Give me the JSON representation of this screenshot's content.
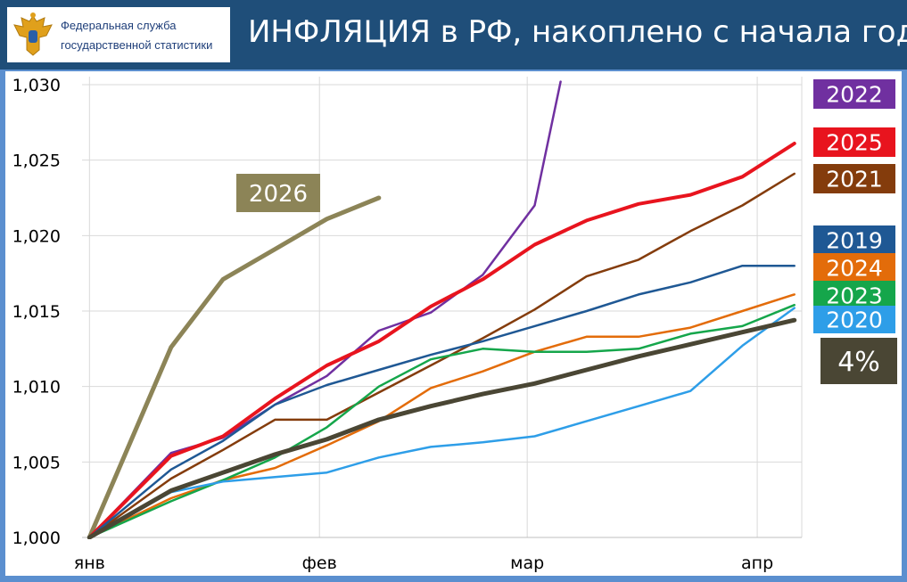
{
  "header": {
    "logo_line1": "Федеральная служба",
    "logo_line2": "государственной статистики",
    "title": "ИНФЛЯЦИЯ в РФ, накоплено с начала года"
  },
  "colors": {
    "header_bg": "#1f4e79",
    "frame_bg": "#5b8fcf",
    "s2026": "#8c8457",
    "s2022": "#7030a0",
    "s2025": "#e8141e",
    "s2021": "#843c0c",
    "s2019": "#1f5894",
    "s2024": "#e36c0a",
    "s2023": "#15a64b",
    "s2020": "#2e9ee8",
    "s4pct": "#4a4634"
  },
  "chart_data": {
    "type": "line",
    "x_ticks": [
      {
        "label": "янв",
        "x": 0
      },
      {
        "label": "фев",
        "x": 31
      },
      {
        "label": "мар",
        "x": 59
      },
      {
        "label": "апр",
        "x": 90
      }
    ],
    "xlim": [
      -1,
      96
    ],
    "ylim": [
      1.0,
      1.03
    ],
    "y_ticks": [
      "1,000",
      "1,005",
      "1,010",
      "1,015",
      "1,020",
      "1,025",
      "1,030"
    ],
    "y_tick_values": [
      1.0,
      1.005,
      1.01,
      1.015,
      1.02,
      1.025,
      1.03
    ],
    "grid": true,
    "series": [
      {
        "name": "2026",
        "color": "#8c8457",
        "width": 5,
        "x": [
          0,
          11,
          18,
          25,
          32,
          39
        ],
        "y": [
          1.0,
          1.0126,
          1.0171,
          1.0191,
          1.0211,
          1.0225
        ]
      },
      {
        "name": "2022",
        "color": "#7030a0",
        "width": 2.5,
        "x": [
          0,
          11,
          18,
          25,
          32,
          39,
          46,
          53,
          60,
          63.5
        ],
        "y": [
          1.0,
          1.0056,
          1.0066,
          1.0088,
          1.0107,
          1.0137,
          1.0149,
          1.0174,
          1.022,
          1.0302
        ]
      },
      {
        "name": "2025",
        "color": "#e8141e",
        "width": 4,
        "x": [
          0,
          11,
          18,
          25,
          32,
          39,
          46,
          53,
          60,
          67,
          74,
          81,
          88,
          95
        ],
        "y": [
          1.0,
          1.0054,
          1.0067,
          1.0092,
          1.0114,
          1.013,
          1.0153,
          1.0171,
          1.0194,
          1.021,
          1.0221,
          1.0227,
          1.0239,
          1.0261
        ]
      },
      {
        "name": "2021",
        "color": "#843c0c",
        "width": 2.5,
        "x": [
          0,
          11,
          18,
          25,
          32,
          39,
          46,
          53,
          60,
          67,
          74,
          81,
          88,
          95
        ],
        "y": [
          1.0,
          1.0039,
          1.0058,
          1.0078,
          1.0078,
          1.0096,
          1.0114,
          1.0132,
          1.0151,
          1.0173,
          1.0184,
          1.0203,
          1.022,
          1.0241
        ]
      },
      {
        "name": "2019",
        "color": "#1f5894",
        "width": 2.5,
        "x": [
          0,
          11,
          18,
          25,
          32,
          39,
          46,
          53,
          60,
          67,
          74,
          81,
          88,
          95
        ],
        "y": [
          1.0,
          1.0045,
          1.0064,
          1.0088,
          1.0101,
          1.0111,
          1.0121,
          1.013,
          1.014,
          1.015,
          1.0161,
          1.0169,
          1.018,
          1.018
        ]
      },
      {
        "name": "2024",
        "color": "#e36c0a",
        "width": 2.5,
        "x": [
          0,
          11,
          18,
          25,
          32,
          39,
          46,
          53,
          60,
          67,
          74,
          81,
          88,
          95
        ],
        "y": [
          1.0,
          1.0026,
          1.0038,
          1.0046,
          1.0061,
          1.0077,
          1.0099,
          1.011,
          1.0123,
          1.0133,
          1.0133,
          1.0139,
          1.015,
          1.0161
        ]
      },
      {
        "name": "2023",
        "color": "#15a64b",
        "width": 2.5,
        "x": [
          0,
          11,
          18,
          25,
          32,
          39,
          46,
          53,
          60,
          67,
          74,
          81,
          88,
          95
        ],
        "y": [
          1.0,
          1.0024,
          1.0038,
          1.0053,
          1.0073,
          1.01,
          1.0118,
          1.0125,
          1.0123,
          1.0123,
          1.0125,
          1.0135,
          1.014,
          1.0154
        ]
      },
      {
        "name": "2020",
        "color": "#2e9ee8",
        "width": 2.5,
        "x": [
          0,
          11,
          18,
          25,
          32,
          39,
          46,
          53,
          60,
          67,
          74,
          81,
          88,
          95
        ],
        "y": [
          1.0,
          1.003,
          1.0037,
          1.004,
          1.0043,
          1.0053,
          1.006,
          1.0063,
          1.0067,
          1.0077,
          1.0087,
          1.0097,
          1.0127,
          1.0152
        ]
      },
      {
        "name": "4%",
        "color": "#4a4634",
        "width": 5,
        "x": [
          0,
          11,
          18,
          25,
          32,
          39,
          46,
          53,
          60,
          67,
          74,
          81,
          88,
          95
        ],
        "y": [
          1.0,
          1.0031,
          1.0043,
          1.0055,
          1.0065,
          1.0078,
          1.0087,
          1.0095,
          1.0102,
          1.0111,
          1.012,
          1.0128,
          1.0136,
          1.0144
        ]
      }
    ],
    "legend": [
      {
        "label": "2022",
        "color": "#7030a0"
      },
      {
        "label": "2025",
        "color": "#e8141e"
      },
      {
        "label": "2021",
        "color": "#843c0c"
      },
      {
        "label": "2019",
        "color": "#1f5894"
      },
      {
        "label": "2024",
        "color": "#e36c0a"
      },
      {
        "label": "2023",
        "color": "#15a64b"
      },
      {
        "label": "2020",
        "color": "#2e9ee8"
      },
      {
        "label": "4%",
        "color": "#4a4634"
      }
    ],
    "annotation": {
      "label": "2026",
      "color": "#8c8457"
    }
  }
}
